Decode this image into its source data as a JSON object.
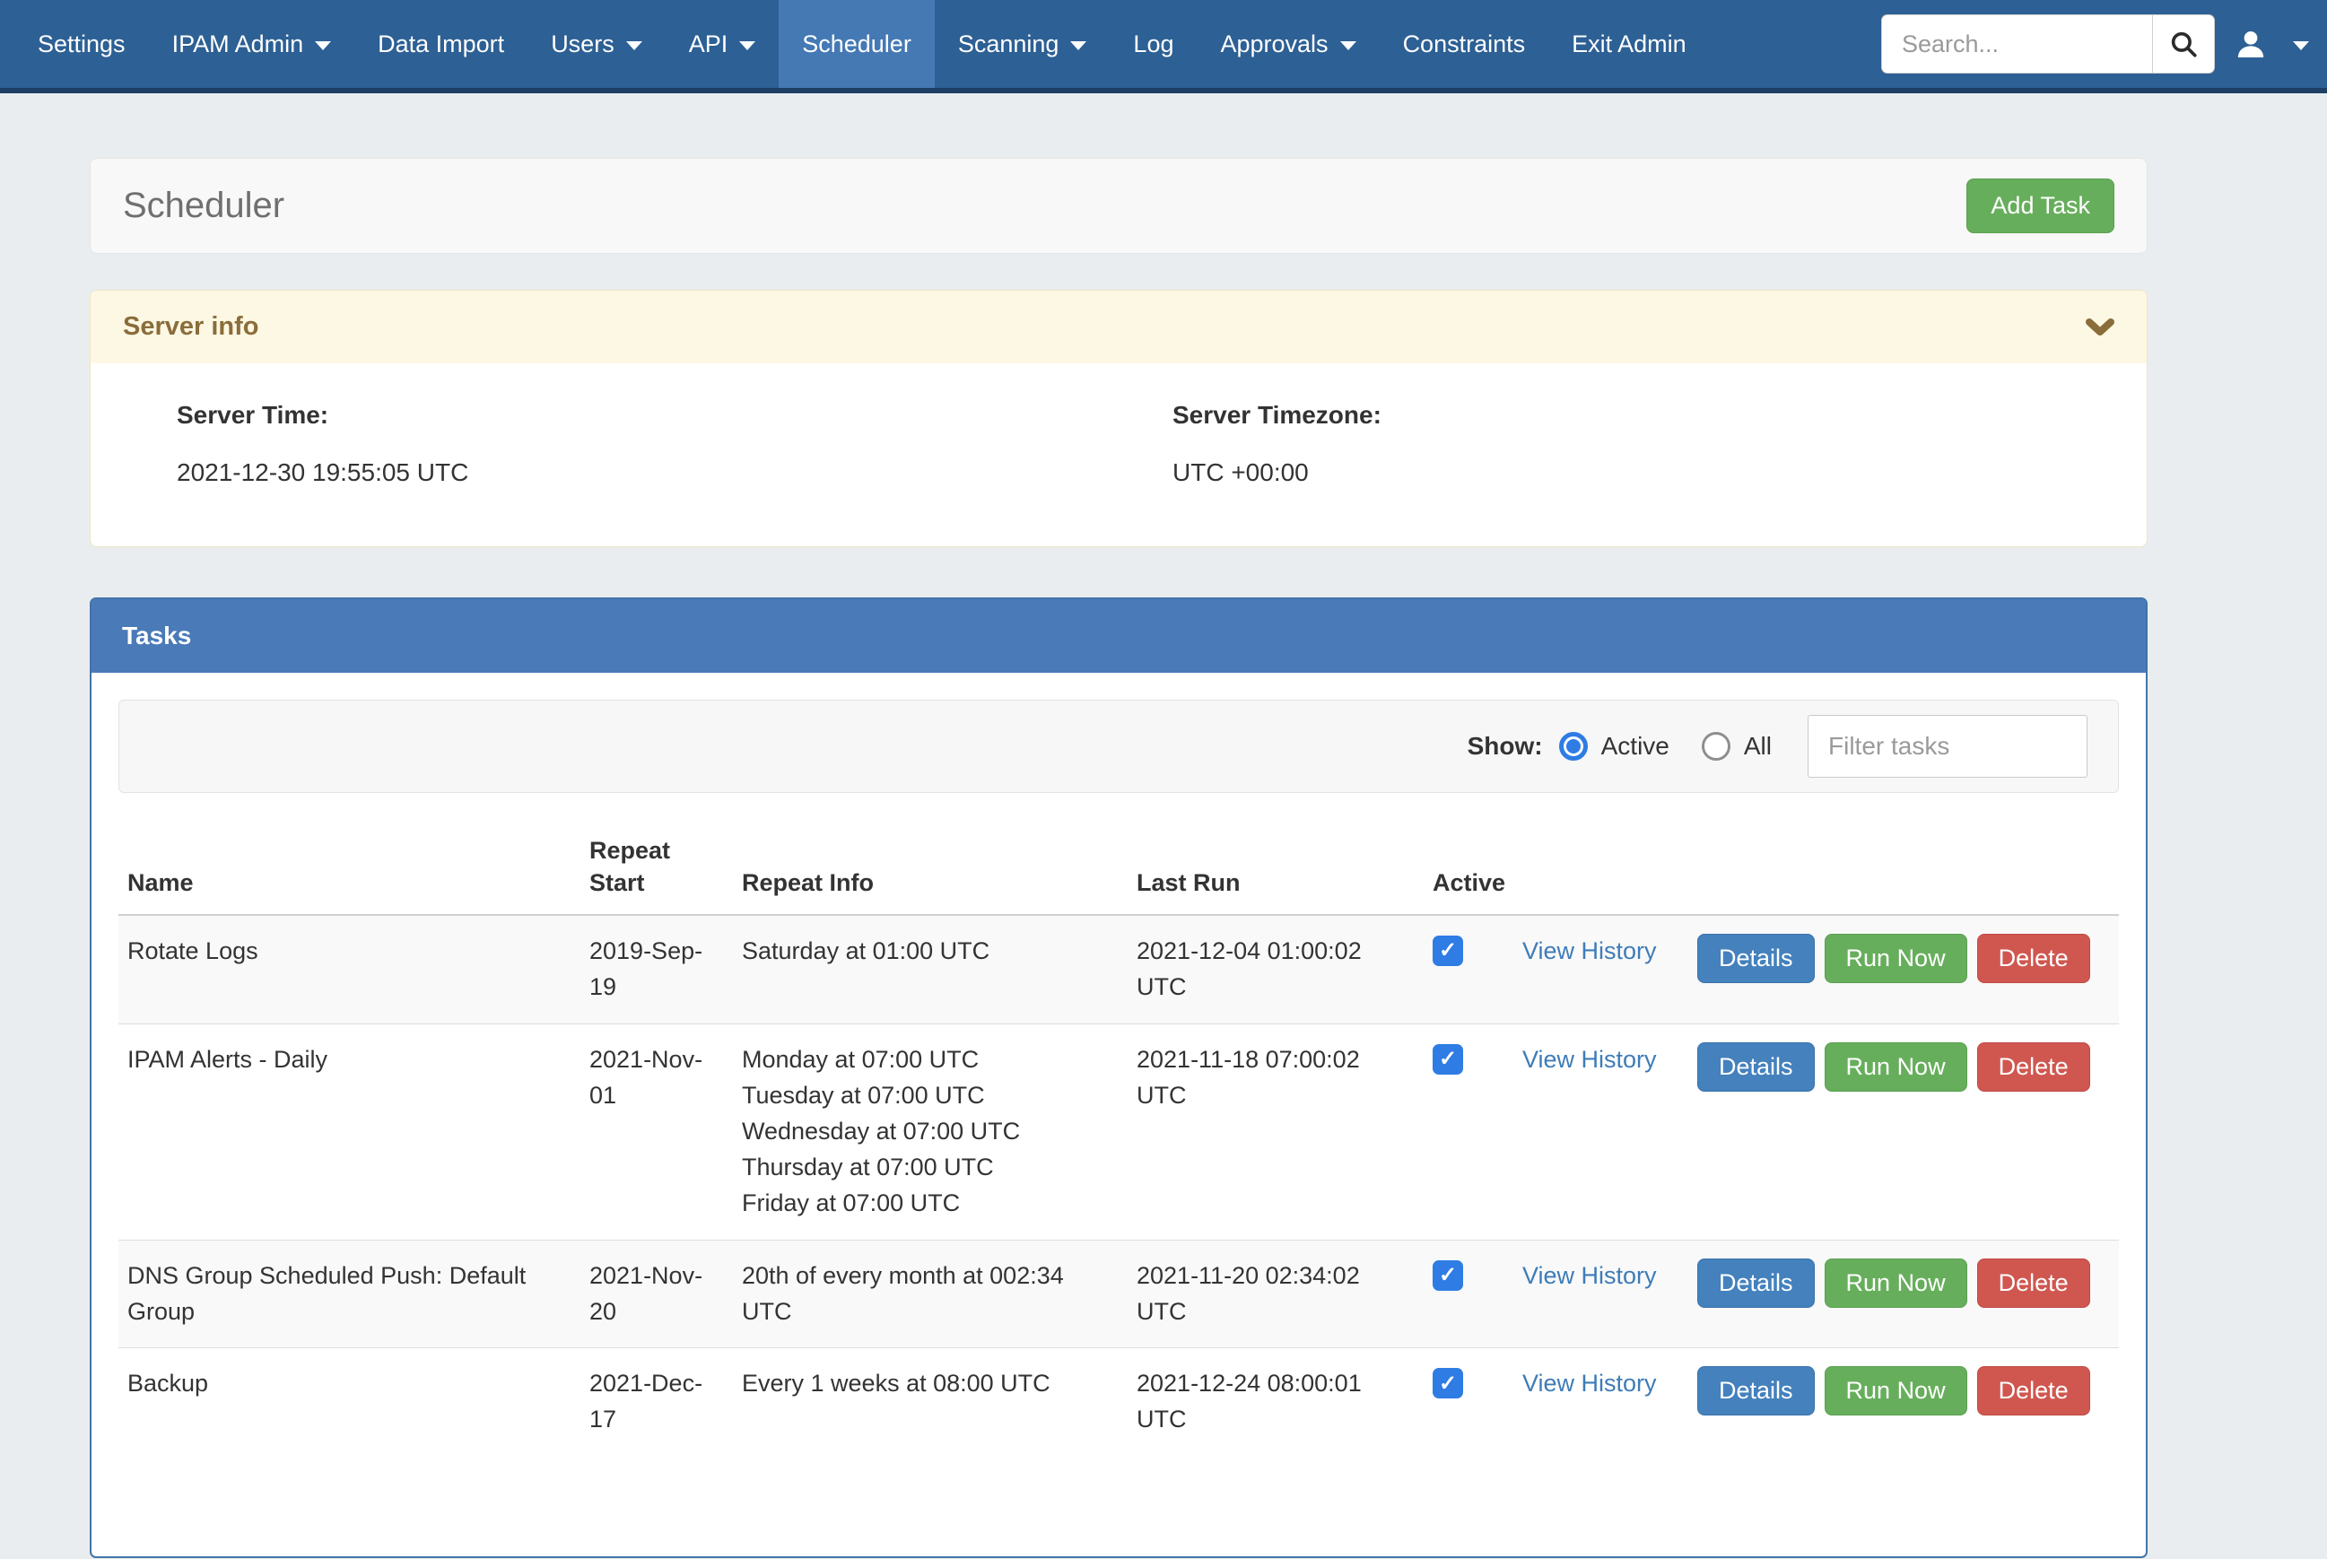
{
  "navbar": {
    "items": [
      {
        "label": "Settings",
        "dropdown": false,
        "active": false
      },
      {
        "label": "IPAM Admin",
        "dropdown": true,
        "active": false
      },
      {
        "label": "Data Import",
        "dropdown": false,
        "active": false
      },
      {
        "label": "Users",
        "dropdown": true,
        "active": false
      },
      {
        "label": "API",
        "dropdown": true,
        "active": false
      },
      {
        "label": "Scheduler",
        "dropdown": false,
        "active": true
      },
      {
        "label": "Scanning",
        "dropdown": true,
        "active": false
      },
      {
        "label": "Log",
        "dropdown": false,
        "active": false
      },
      {
        "label": "Approvals",
        "dropdown": true,
        "active": false
      },
      {
        "label": "Constraints",
        "dropdown": false,
        "active": false
      },
      {
        "label": "Exit Admin",
        "dropdown": false,
        "active": false
      }
    ],
    "search_placeholder": "Search...",
    "icons": {
      "search": "search-icon",
      "user": "user-icon",
      "caret": "chevron-down-icon"
    }
  },
  "page": {
    "title": "Scheduler",
    "add_task_label": "Add Task"
  },
  "server_info": {
    "title": "Server info",
    "server_time_label": "Server Time:",
    "server_time": "2021-12-30 19:55:05 UTC",
    "server_timezone_label": "Server Timezone:",
    "server_timezone": "UTC +00:00"
  },
  "tasks": {
    "title": "Tasks",
    "show_label": "Show:",
    "radio_active_label": "Active",
    "radio_all_label": "All",
    "selected_filter": "Active",
    "filter_placeholder": "Filter tasks",
    "columns": {
      "name": "Name",
      "repeat_start": "Repeat Start",
      "repeat_info": "Repeat Info",
      "last_run": "Last Run",
      "active": "Active"
    },
    "actions": {
      "view_history": "View History",
      "details": "Details",
      "run_now": "Run Now",
      "delete": "Delete"
    },
    "rows": [
      {
        "name": "Rotate Logs",
        "repeat_start": "2019-Sep-19",
        "repeat_info": [
          "Saturday at 01:00 UTC"
        ],
        "last_run": "2021-12-04 01:00:02 UTC",
        "active": true
      },
      {
        "name": "IPAM Alerts - Daily",
        "repeat_start": "2021-Nov-01",
        "repeat_info": [
          "Monday at 07:00 UTC",
          "Tuesday at 07:00 UTC",
          "Wednesday at 07:00 UTC",
          "Thursday at 07:00 UTC",
          "Friday at 07:00 UTC"
        ],
        "last_run": "2021-11-18 07:00:02 UTC",
        "active": true
      },
      {
        "name": "DNS Group Scheduled Push: Default Group",
        "repeat_start": "2021-Nov-20",
        "repeat_info": [
          "20th of every month at 002:34 UTC"
        ],
        "last_run": "2021-11-20 02:34:02 UTC",
        "active": true
      },
      {
        "name": "Backup",
        "repeat_start": "2021-Dec-17",
        "repeat_info": [
          "Every 1 weeks at 08:00 UTC"
        ],
        "last_run": "2021-12-24 08:00:01 UTC",
        "active": true
      }
    ]
  },
  "colors": {
    "navbar_bg": "#2d6094",
    "navbar_active_bg": "#4579b4",
    "navbar_border": "#1d3f63",
    "page_bg": "#e9edf0",
    "panel_primary_heading": "#4a7ab8",
    "panel_warning_heading_bg": "#fdf8e3",
    "panel_warning_text": "#8a6d3b",
    "green_button": "#67ae5c",
    "blue_button": "#4481bd",
    "red_button": "#d05750",
    "link": "#3e7cb8",
    "checkbox_blue": "#2e7ce4"
  }
}
